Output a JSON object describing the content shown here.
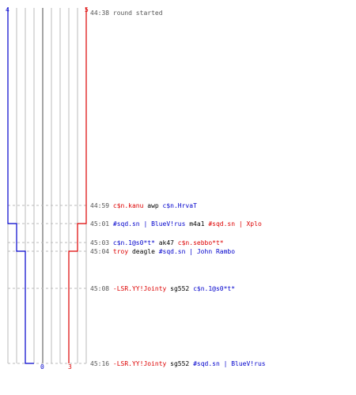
{
  "header": {
    "left_count": "4",
    "right_count": "5"
  },
  "footer": {
    "left_count": "0",
    "right_count": "3"
  },
  "colors": {
    "team_left": "#0000cc",
    "team_right": "#dd0000",
    "grid": "#bbbbbb",
    "center_line": "#888888",
    "time_text": "#555555",
    "neutral_text": "#000000",
    "dashed": "#bbbbbb"
  },
  "events": [
    {
      "time": "44:38",
      "parts": [
        {
          "text": "round started",
          "team": "neutral_gray"
        }
      ]
    },
    {
      "time": "44:59",
      "parts": [
        {
          "text": "c$n.kanu",
          "team": "right"
        },
        {
          "text": " awp ",
          "team": "neutral"
        },
        {
          "text": "c$n.HrvaT",
          "team": "left"
        }
      ]
    },
    {
      "time": "45:01",
      "parts": [
        {
          "text": "#sqd.sn | BlueV!rus",
          "team": "left"
        },
        {
          "text": " m4a1 ",
          "team": "neutral"
        },
        {
          "text": "#sqd.sn | Xplo",
          "team": "right"
        }
      ]
    },
    {
      "time": "45:03",
      "parts": [
        {
          "text": "c$n.1@s0*t*",
          "team": "left"
        },
        {
          "text": " ak47 ",
          "team": "neutral"
        },
        {
          "text": "c$n.sebbo*t*",
          "team": "right"
        }
      ]
    },
    {
      "time": "45:04",
      "parts": [
        {
          "text": "troy",
          "team": "right"
        },
        {
          "text": " deagle ",
          "team": "neutral"
        },
        {
          "text": "#sqd.sn | John Rambo",
          "team": "left"
        }
      ]
    },
    {
      "time": "45:08",
      "parts": [
        {
          "text": "-LSR.YY!Jointy",
          "team": "right"
        },
        {
          "text": " sg552 ",
          "team": "neutral"
        },
        {
          "text": "c$n.1@s0*t*",
          "team": "left"
        }
      ]
    },
    {
      "time": "45:16",
      "parts": [
        {
          "text": "-LSR.YY!Jointy",
          "team": "right"
        },
        {
          "text": " sg552 ",
          "team": "neutral"
        },
        {
          "text": "#sqd.sn | BlueV!rus",
          "team": "left"
        }
      ]
    }
  ],
  "timeline": {
    "left_team_alive": [
      4,
      4,
      3,
      3,
      2,
      2,
      1,
      0
    ],
    "right_team_alive": [
      5,
      5,
      4,
      4,
      3,
      3,
      3,
      3
    ]
  }
}
